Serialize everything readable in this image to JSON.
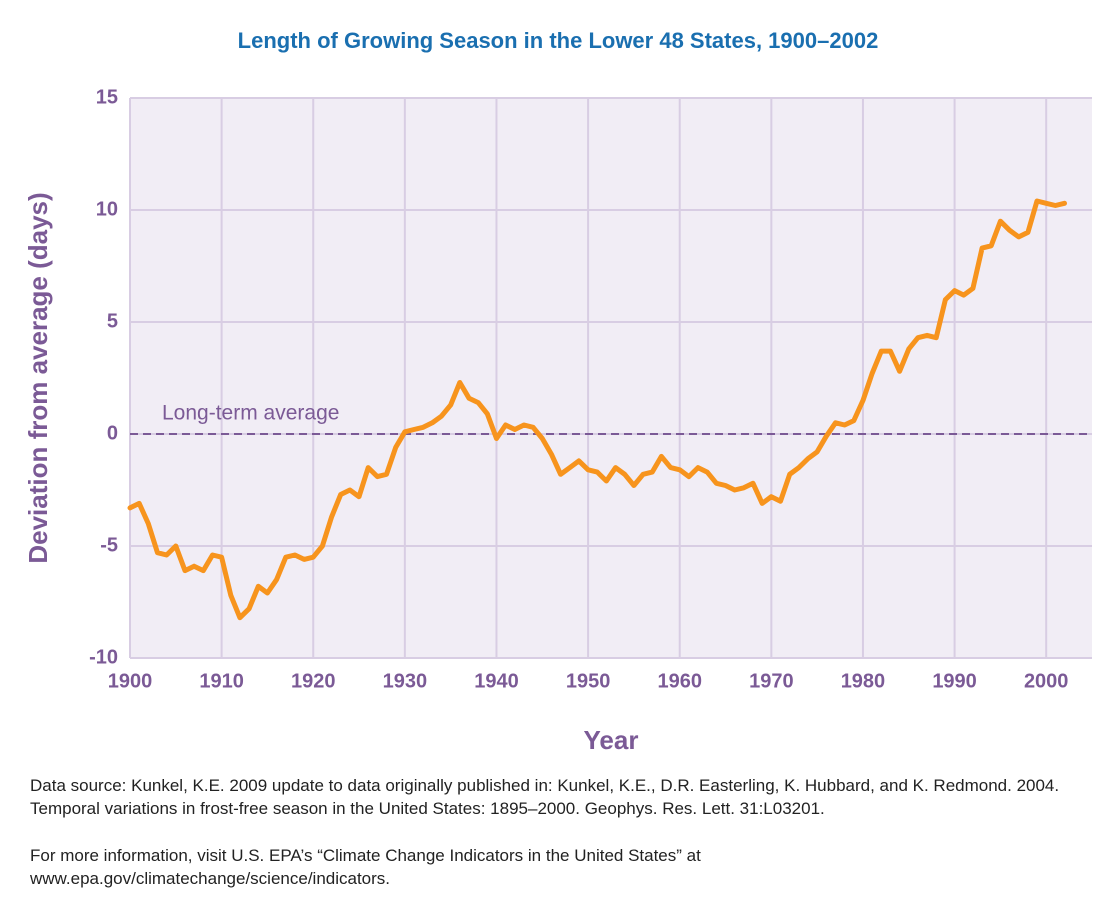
{
  "chart_data": {
    "type": "line",
    "title": "Length of Growing Season in the Lower 48 States, 1900–2002",
    "x_label": "Year",
    "y_label": "Deviation from average (days)",
    "x": [
      1900,
      1901,
      1902,
      1903,
      1904,
      1905,
      1906,
      1907,
      1908,
      1909,
      1910,
      1911,
      1912,
      1913,
      1914,
      1915,
      1916,
      1917,
      1918,
      1919,
      1920,
      1921,
      1922,
      1923,
      1924,
      1925,
      1926,
      1927,
      1928,
      1929,
      1930,
      1931,
      1932,
      1933,
      1934,
      1935,
      1936,
      1937,
      1938,
      1939,
      1940,
      1941,
      1942,
      1943,
      1944,
      1945,
      1946,
      1947,
      1948,
      1949,
      1950,
      1951,
      1952,
      1953,
      1954,
      1955,
      1956,
      1957,
      1958,
      1959,
      1960,
      1961,
      1962,
      1963,
      1964,
      1965,
      1966,
      1967,
      1968,
      1969,
      1970,
      1971,
      1972,
      1973,
      1974,
      1975,
      1976,
      1977,
      1978,
      1979,
      1980,
      1981,
      1982,
      1983,
      1984,
      1985,
      1986,
      1987,
      1988,
      1989,
      1990,
      1991,
      1992,
      1993,
      1994,
      1995,
      1996,
      1997,
      1998,
      1999,
      2000,
      2001,
      2002
    ],
    "values": [
      -3.3,
      -3.1,
      -4.0,
      -5.3,
      -5.4,
      -5.0,
      -6.1,
      -5.9,
      -6.1,
      -5.4,
      -5.5,
      -7.2,
      -8.2,
      -7.8,
      -6.8,
      -7.1,
      -6.5,
      -5.5,
      -5.4,
      -5.6,
      -5.5,
      -5.0,
      -3.7,
      -2.7,
      -2.5,
      -2.8,
      -1.5,
      -1.9,
      -1.8,
      -0.6,
      0.1,
      0.2,
      0.3,
      0.5,
      0.8,
      1.3,
      2.3,
      1.6,
      1.4,
      0.9,
      -0.2,
      0.4,
      0.2,
      0.4,
      0.3,
      -0.2,
      -0.9,
      -1.8,
      -1.5,
      -1.2,
      -1.6,
      -1.7,
      -2.1,
      -1.5,
      -1.8,
      -2.3,
      -1.8,
      -1.7,
      -1.0,
      -1.5,
      -1.6,
      -1.9,
      -1.5,
      -1.7,
      -2.2,
      -2.3,
      -2.5,
      -2.4,
      -2.2,
      -3.1,
      -2.8,
      -3.0,
      -1.8,
      -1.5,
      -1.1,
      -0.8,
      -0.1,
      0.5,
      0.4,
      0.6,
      1.5,
      2.7,
      3.7,
      3.7,
      2.8,
      3.8,
      4.3,
      4.4,
      4.3,
      6.0,
      6.4,
      6.2,
      6.5,
      8.3,
      8.4,
      9.5,
      9.1,
      8.8,
      9.0,
      10.4,
      10.3,
      10.2,
      10.3
    ],
    "color": "#f7941d",
    "xlim": [
      1900,
      2005
    ],
    "xticks": [
      1900,
      1910,
      1920,
      1930,
      1940,
      1950,
      1960,
      1970,
      1980,
      1990,
      2000
    ],
    "ylim": [
      -10,
      15
    ],
    "yticks": [
      -10,
      -5,
      0,
      5,
      10,
      15
    ],
    "grid": true,
    "reference_line": {
      "value": 0,
      "label": "Long-term average"
    },
    "notes": [
      "Data source: Kunkel, K.E. 2009 update to data originally published in: Kunkel, K.E., D.R. Easterling, K. Hubbard, and K. Redmond. 2004. Temporal variations in frost-free season in the United States: 1895–2000. Geophys. Res. Lett. 31:L03201.",
      "For more information, visit U.S. EPA’s “Climate Change Indicators in the United States” at www.epa.gov/climatechange/science/indicators."
    ]
  }
}
